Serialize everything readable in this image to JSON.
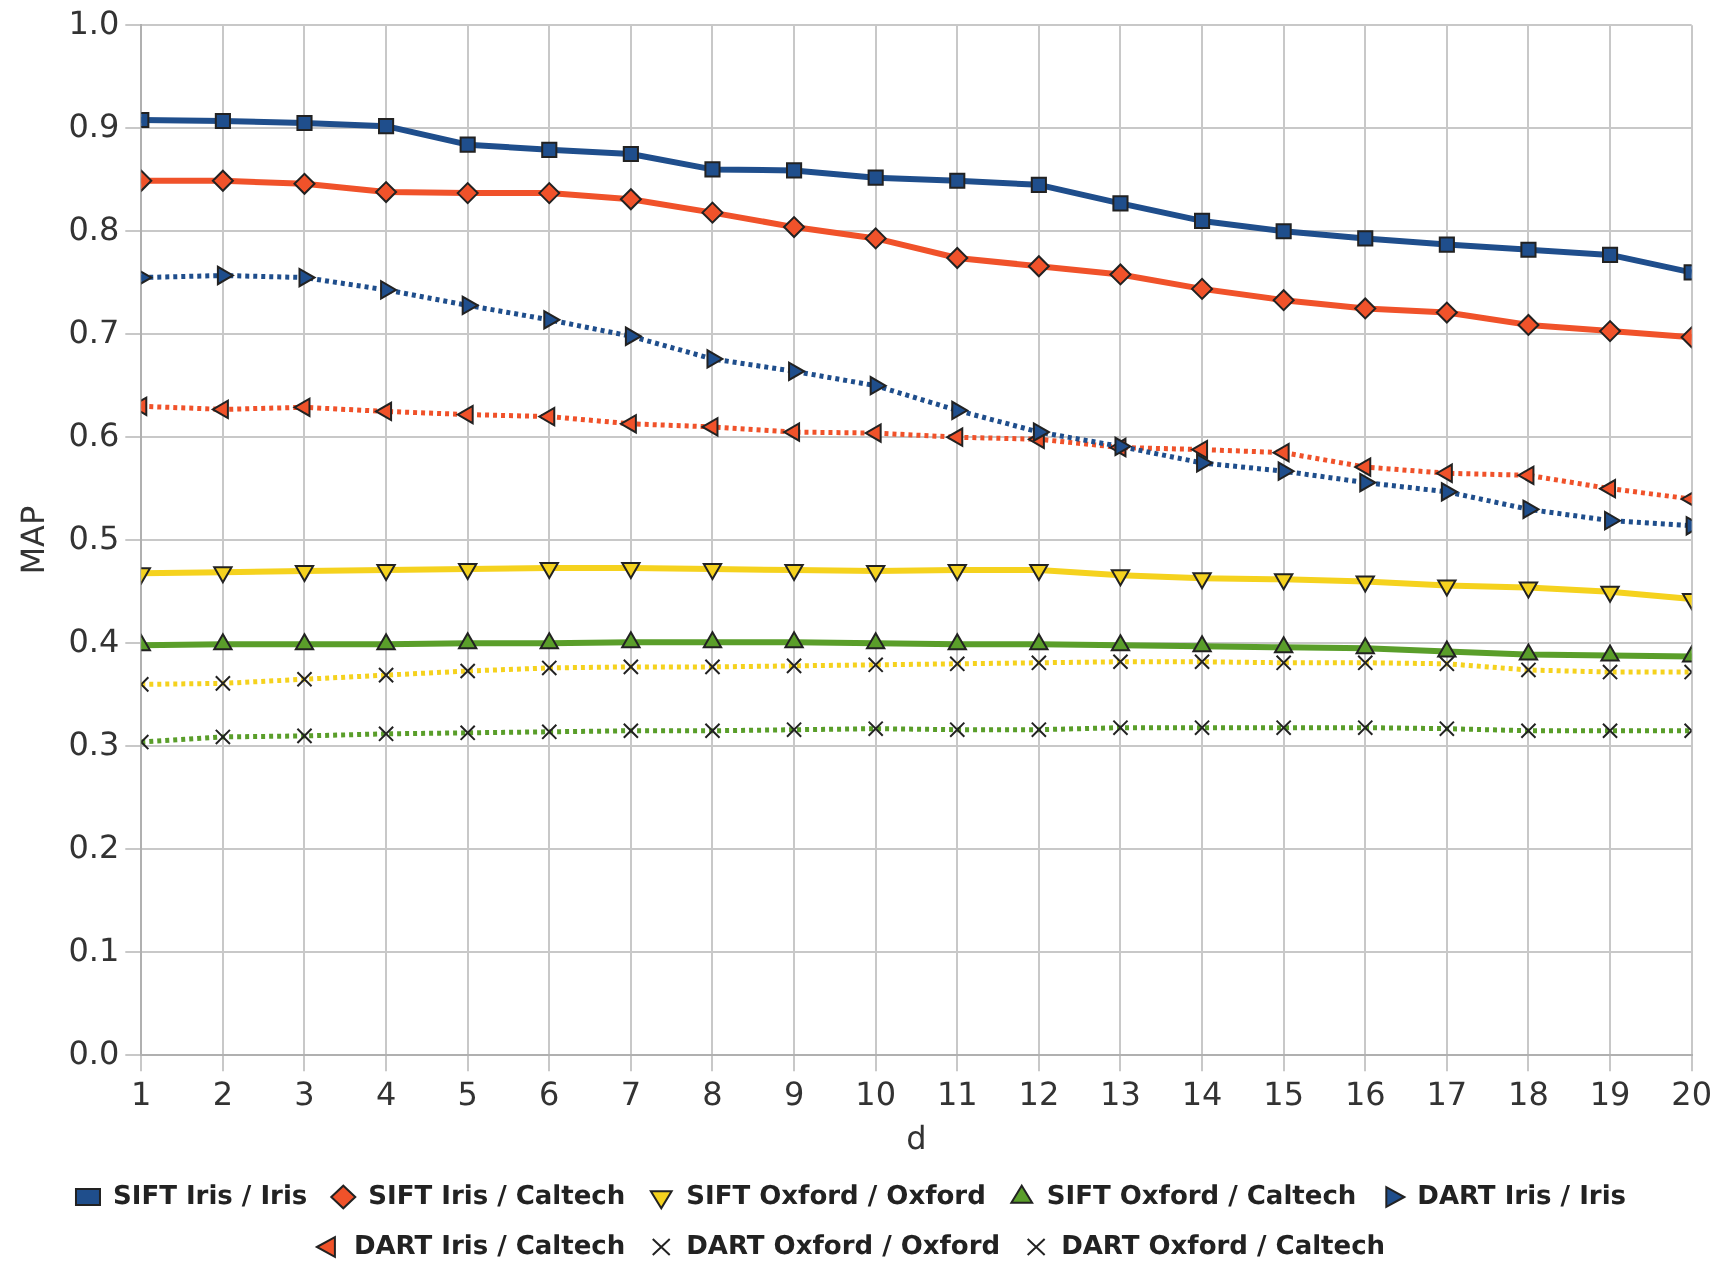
{
  "chart_data": {
    "type": "line",
    "xlabel": "d",
    "ylabel": "MAP",
    "x": [
      1,
      2,
      3,
      4,
      5,
      6,
      7,
      8,
      9,
      10,
      11,
      12,
      13,
      14,
      15,
      16,
      17,
      18,
      19,
      20
    ],
    "xlim": [
      1,
      20
    ],
    "xticks": [
      1,
      2,
      3,
      4,
      5,
      6,
      7,
      8,
      9,
      10,
      11,
      12,
      13,
      14,
      15,
      16,
      17,
      18,
      19,
      20
    ],
    "ylim": [
      0,
      1
    ],
    "yticks": [
      {
        "value": 0,
        "label": "0.0"
      },
      0.1,
      0.2,
      0.3,
      0.4,
      0.5,
      0.6,
      0.7,
      0.8,
      0.9,
      {
        "value": 1,
        "label": "1.0"
      }
    ],
    "grid": true,
    "legend": "bottom",
    "series": [
      {
        "name": "SIFT Iris / Iris",
        "color": "#1f4e8c",
        "marker": "square",
        "line_style": "solid",
        "values": [
          0.908,
          0.907,
          0.905,
          0.902,
          0.884,
          0.879,
          0.875,
          0.86,
          0.859,
          0.852,
          0.849,
          0.845,
          0.827,
          0.81,
          0.8,
          0.793,
          0.787,
          0.782,
          0.777,
          0.76
        ]
      },
      {
        "name": "SIFT Iris / Caltech",
        "color": "#f0522a",
        "marker": "diamond",
        "line_style": "solid",
        "values": [
          0.849,
          0.849,
          0.846,
          0.838,
          0.837,
          0.837,
          0.831,
          0.818,
          0.804,
          0.793,
          0.774,
          0.766,
          0.758,
          0.744,
          0.733,
          0.725,
          0.721,
          0.709,
          0.703,
          0.697
        ]
      },
      {
        "name": "SIFT Oxford / Oxford",
        "color": "#f5d21e",
        "marker": "triangle-down",
        "line_style": "solid",
        "values": [
          0.468,
          0.469,
          0.47,
          0.471,
          0.472,
          0.473,
          0.473,
          0.472,
          0.471,
          0.47,
          0.471,
          0.471,
          0.466,
          0.463,
          0.462,
          0.46,
          0.456,
          0.454,
          0.45,
          0.443
        ]
      },
      {
        "name": "SIFT Oxford / Caltech",
        "color": "#5a9e2a",
        "marker": "triangle",
        "line_style": "solid",
        "values": [
          0.398,
          0.399,
          0.399,
          0.399,
          0.4,
          0.4,
          0.401,
          0.401,
          0.401,
          0.4,
          0.399,
          0.399,
          0.398,
          0.397,
          0.396,
          0.395,
          0.392,
          0.389,
          0.388,
          0.387
        ]
      },
      {
        "name": "DART Iris / Iris",
        "color": "#1f4e8c",
        "marker": "triangle-right",
        "line_style": "dotted",
        "values": [
          0.755,
          0.757,
          0.755,
          0.743,
          0.728,
          0.714,
          0.698,
          0.676,
          0.664,
          0.65,
          0.626,
          0.605,
          0.591,
          0.575,
          0.567,
          0.556,
          0.547,
          0.53,
          0.519,
          0.514
        ]
      },
      {
        "name": "DART Iris / Caltech",
        "color": "#f0522a",
        "marker": "triangle-left",
        "line_style": "dotted",
        "values": [
          0.63,
          0.627,
          0.629,
          0.625,
          0.622,
          0.62,
          0.613,
          0.61,
          0.605,
          0.604,
          0.6,
          0.598,
          0.59,
          0.588,
          0.585,
          0.571,
          0.565,
          0.563,
          0.55,
          0.54
        ]
      },
      {
        "name": "DART Oxford / Oxford",
        "color": "#f5d21e",
        "marker": "cross",
        "line_style": "dotted",
        "values": [
          0.36,
          0.361,
          0.365,
          0.369,
          0.373,
          0.376,
          0.377,
          0.377,
          0.378,
          0.379,
          0.38,
          0.381,
          0.382,
          0.382,
          0.381,
          0.381,
          0.38,
          0.374,
          0.372,
          0.372
        ]
      },
      {
        "name": "DART Oxford / Caltech",
        "color": "#5a9e2a",
        "marker": "cross",
        "line_style": "dotted",
        "values": [
          0.304,
          0.309,
          0.31,
          0.312,
          0.313,
          0.314,
          0.315,
          0.315,
          0.316,
          0.317,
          0.316,
          0.316,
          0.318,
          0.318,
          0.318,
          0.318,
          0.317,
          0.315,
          0.315,
          0.315
        ]
      }
    ]
  }
}
